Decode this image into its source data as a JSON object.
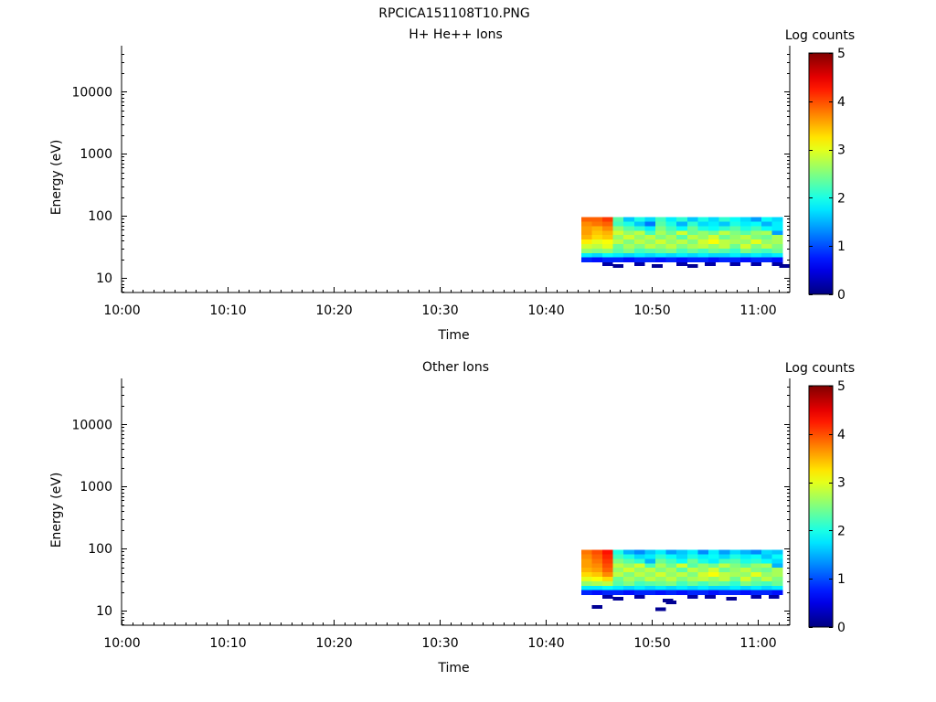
{
  "figure_title": "RPCICA151108T10.PNG",
  "chart_data": [
    {
      "type": "heatmap",
      "title": "H+ He++ Ions",
      "xlabel": "Time",
      "ylabel": "Energy (eV)",
      "x_ticks": [
        "10:00",
        "10:10",
        "10:20",
        "10:30",
        "10:40",
        "10:50",
        "11:00"
      ],
      "y_ticks": [
        "10",
        "100",
        "1000",
        "10000"
      ],
      "y_scale": "log",
      "x_range": [
        "10:00",
        "11:03"
      ],
      "ylim": [
        5.8,
        45000
      ],
      "colorbar": {
        "label": "Log counts",
        "ticks": [
          "0",
          "1",
          "2",
          "3",
          "4",
          "5"
        ],
        "range": [
          0,
          5
        ],
        "colormap": "jet"
      },
      "data_time_range": [
        "10:43:20",
        "11:02:20"
      ],
      "data_energy_range": [
        18,
        95
      ],
      "time_bins": 19,
      "energy_bins": 10,
      "log_counts_grid": [
        [
          3.9,
          3.9,
          4.1,
          2.3,
          1.6,
          2.0,
          1.7,
          2.2,
          1.8,
          2.1,
          1.6,
          2.0,
          1.7,
          2.1,
          1.9,
          1.7,
          1.4,
          1.9,
          1.7
        ],
        [
          3.7,
          3.8,
          3.9,
          2.2,
          2.0,
          1.6,
          1.2,
          2.3,
          2.0,
          1.5,
          2.1,
          1.7,
          1.8,
          1.6,
          2.0,
          1.8,
          1.9,
          1.5,
          1.8
        ],
        [
          3.6,
          3.5,
          3.7,
          2.6,
          2.3,
          2.1,
          1.8,
          2.5,
          2.2,
          1.9,
          2.4,
          2.0,
          1.9,
          2.1,
          2.3,
          2.0,
          2.2,
          1.9,
          1.8
        ],
        [
          3.6,
          3.4,
          3.5,
          2.9,
          2.6,
          2.8,
          2.2,
          2.7,
          2.4,
          2.9,
          2.4,
          2.6,
          2.4,
          2.8,
          2.5,
          2.3,
          2.6,
          2.7,
          1.4
        ],
        [
          3.5,
          3.3,
          3.4,
          2.6,
          2.9,
          2.6,
          2.8,
          2.5,
          2.7,
          2.3,
          2.8,
          2.6,
          2.9,
          2.4,
          2.6,
          2.8,
          2.5,
          2.4,
          2.7
        ],
        [
          3.2,
          3.0,
          3.1,
          2.8,
          2.5,
          2.8,
          2.6,
          2.9,
          2.6,
          2.8,
          2.5,
          2.9,
          3.1,
          2.8,
          2.7,
          2.6,
          3.0,
          2.6,
          2.7
        ],
        [
          2.9,
          2.8,
          3.0,
          2.4,
          2.7,
          2.5,
          2.8,
          2.6,
          2.8,
          2.5,
          2.7,
          2.8,
          2.6,
          2.8,
          2.4,
          2.9,
          2.5,
          2.8,
          2.5
        ],
        [
          2.6,
          2.5,
          2.6,
          2.3,
          2.5,
          2.2,
          2.3,
          2.4,
          2.5,
          2.2,
          2.4,
          2.2,
          2.4,
          2.3,
          2.1,
          2.5,
          2.3,
          2.2,
          2.4
        ],
        [
          1.8,
          1.7,
          1.9,
          1.8,
          1.7,
          1.8,
          1.7,
          1.8,
          1.7,
          1.8,
          1.7,
          1.8,
          1.7,
          1.7,
          1.8,
          1.7,
          1.8,
          1.7,
          1.8
        ],
        [
          0.8,
          0.7,
          0.8,
          0.8,
          0.7,
          0.8,
          0.8,
          0.7,
          0.8,
          0.7,
          0.8,
          0.8,
          0.7,
          0.8,
          0.8,
          0.7,
          0.8,
          0.8,
          0.7
        ]
      ],
      "sparse_points": [
        {
          "time": "10:45:20",
          "energy": 16.5,
          "log_count": 0.2
        },
        {
          "time": "10:46:20",
          "energy": 15.5,
          "log_count": 0.1
        },
        {
          "time": "10:48:20",
          "energy": 16.5,
          "log_count": 0.2
        },
        {
          "time": "10:50:00",
          "energy": 15.5,
          "log_count": 0.1
        },
        {
          "time": "10:52:20",
          "energy": 16.5,
          "log_count": 0.2
        },
        {
          "time": "10:53:20",
          "energy": 15.5,
          "log_count": 0.1
        },
        {
          "time": "10:55:00",
          "energy": 16.5,
          "log_count": 0.2
        },
        {
          "time": "10:57:20",
          "energy": 16.5,
          "log_count": 0.2
        },
        {
          "time": "10:59:20",
          "energy": 16.5,
          "log_count": 0.2
        },
        {
          "time": "11:01:20",
          "energy": 16.5,
          "log_count": 0.2
        },
        {
          "time": "11:02:00",
          "energy": 15.5,
          "log_count": 0.1
        }
      ]
    },
    {
      "type": "heatmap",
      "title": "Other Ions",
      "xlabel": "Time",
      "ylabel": "Energy (eV)",
      "x_ticks": [
        "10:00",
        "10:10",
        "10:20",
        "10:30",
        "10:40",
        "10:50",
        "11:00"
      ],
      "y_ticks": [
        "10",
        "100",
        "1000",
        "10000"
      ],
      "y_scale": "log",
      "x_range": [
        "10:00",
        "11:03"
      ],
      "ylim": [
        5.8,
        45000
      ],
      "colorbar": {
        "label": "Log counts",
        "ticks": [
          "0",
          "1",
          "2",
          "3",
          "4",
          "5"
        ],
        "range": [
          0,
          5
        ],
        "colormap": "jet"
      },
      "data_time_range": [
        "10:43:20",
        "11:02:20"
      ],
      "data_energy_range": [
        18,
        95
      ],
      "time_bins": 19,
      "energy_bins": 10,
      "log_counts_grid": [
        [
          3.8,
          4.0,
          4.3,
          2.0,
          1.5,
          1.3,
          1.6,
          1.8,
          1.4,
          1.6,
          1.8,
          1.3,
          1.8,
          1.4,
          1.7,
          1.5,
          1.3,
          1.7,
          1.6
        ],
        [
          3.7,
          3.9,
          4.2,
          2.2,
          2.0,
          1.7,
          1.8,
          2.1,
          1.9,
          1.7,
          2.0,
          1.8,
          1.9,
          1.7,
          2.0,
          1.8,
          1.9,
          1.6,
          1.9
        ],
        [
          3.6,
          3.8,
          4.1,
          2.5,
          2.3,
          2.1,
          1.5,
          2.4,
          2.2,
          1.9,
          2.4,
          2.0,
          1.8,
          2.2,
          2.3,
          2.0,
          2.1,
          1.9,
          1.7
        ],
        [
          3.6,
          3.7,
          4.0,
          2.8,
          2.6,
          2.9,
          2.2,
          2.7,
          2.4,
          2.9,
          2.3,
          2.6,
          2.4,
          2.8,
          2.5,
          2.3,
          2.6,
          2.7,
          1.5
        ],
        [
          3.5,
          3.6,
          3.9,
          2.6,
          2.9,
          2.6,
          2.8,
          2.5,
          2.7,
          2.3,
          2.8,
          2.6,
          2.9,
          2.4,
          2.6,
          2.8,
          2.5,
          2.4,
          2.7
        ],
        [
          3.3,
          3.4,
          3.7,
          2.8,
          2.5,
          2.8,
          2.6,
          2.9,
          2.6,
          2.8,
          2.5,
          2.9,
          3.1,
          2.8,
          2.7,
          2.6,
          3.0,
          2.6,
          2.7
        ],
        [
          3.0,
          3.1,
          3.3,
          2.4,
          2.7,
          2.5,
          2.8,
          2.6,
          2.8,
          2.5,
          2.7,
          2.8,
          2.6,
          2.8,
          2.4,
          2.9,
          2.5,
          2.8,
          2.5
        ],
        [
          2.6,
          2.7,
          2.8,
          2.3,
          2.5,
          2.2,
          2.3,
          2.4,
          2.5,
          2.2,
          2.4,
          2.2,
          2.4,
          2.3,
          2.1,
          2.5,
          2.3,
          2.2,
          2.4
        ],
        [
          1.8,
          1.8,
          1.9,
          1.8,
          1.7,
          1.8,
          1.7,
          1.8,
          1.7,
          1.8,
          1.7,
          1.8,
          1.7,
          1.7,
          1.8,
          1.7,
          1.8,
          1.7,
          1.8
        ],
        [
          0.8,
          0.7,
          0.8,
          0.8,
          0.7,
          0.8,
          0.8,
          0.7,
          0.8,
          0.7,
          0.8,
          0.8,
          0.7,
          0.8,
          0.8,
          0.7,
          0.8,
          0.8,
          0.7
        ]
      ],
      "sparse_points": [
        {
          "time": "10:45:20",
          "energy": 16.5,
          "log_count": 0.2
        },
        {
          "time": "10:46:20",
          "energy": 15.5,
          "log_count": 0.1
        },
        {
          "time": "10:48:20",
          "energy": 16.5,
          "log_count": 0.2
        },
        {
          "time": "10:51:00",
          "energy": 14.5,
          "log_count": 0.1
        },
        {
          "time": "10:53:20",
          "energy": 16.5,
          "log_count": 0.2
        },
        {
          "time": "10:55:00",
          "energy": 16.5,
          "log_count": 0.2
        },
        {
          "time": "10:57:00",
          "energy": 15.5,
          "log_count": 0.1
        },
        {
          "time": "10:59:20",
          "energy": 16.5,
          "log_count": 0.2
        },
        {
          "time": "11:01:00",
          "energy": 16.5,
          "log_count": 0.2
        },
        {
          "time": "10:44:20",
          "energy": 11.5,
          "log_count": 0.1
        },
        {
          "time": "10:50:20",
          "energy": 10.5,
          "log_count": 0.1
        },
        {
          "time": "10:51:20",
          "energy": 13.5,
          "log_count": 0.1
        }
      ]
    }
  ]
}
